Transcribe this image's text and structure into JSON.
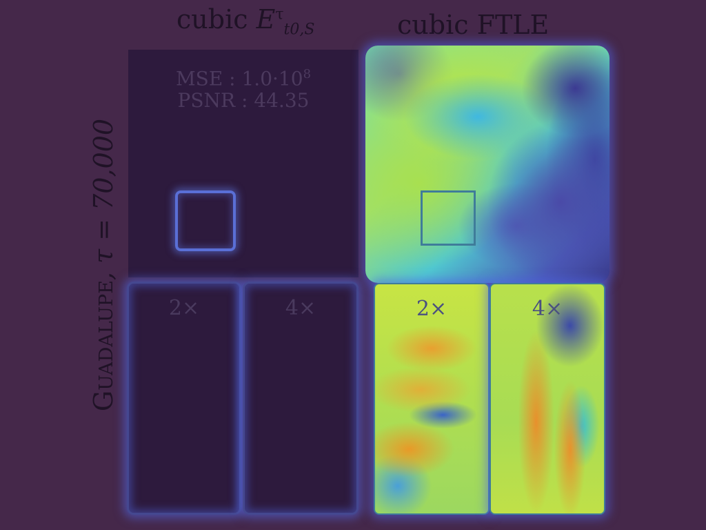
{
  "titles": {
    "left_prefix": "cubic ",
    "left_symbol": "E",
    "left_sup": "τ",
    "left_sub": "t0,S",
    "right": "cubic FTLE"
  },
  "row_label": {
    "dataset": "Guadalupe",
    "param_text": ", τ = 70,000"
  },
  "error_panel": {
    "mse_label": "MSE : 1.0·10",
    "mse_exp": "8",
    "psnr_label": "PSNR : 44.35"
  },
  "zoom_labels": {
    "two_x": "2×",
    "four_x": "4×"
  },
  "colors": {
    "background": "#45284a",
    "error_fill": "#2d1a3d",
    "highlight_box": "#5a6fd6",
    "ftle_box": "#3f7c9a"
  }
}
